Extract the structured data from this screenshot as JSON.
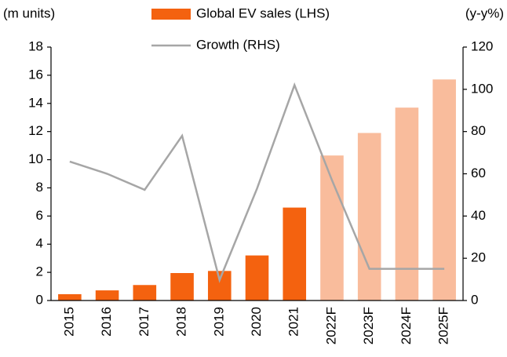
{
  "chart_data": {
    "type": "bar_line",
    "y_label": "(m units)",
    "y2_label": "(y-y%)",
    "categories": [
      "2015",
      "2016",
      "2017",
      "2018",
      "2019",
      "2020",
      "2021",
      "2022F",
      "2023F",
      "2024F",
      "2025F"
    ],
    "series": [
      {
        "name": "Global EV sales (LHS)",
        "type": "bar",
        "color": "#f4620f",
        "colors": [
          "#f4620f",
          "#f4620f",
          "#f4620f",
          "#f4620f",
          "#f4620f",
          "#f4620f",
          "#f4620f",
          "#f9bc9c",
          "#f9bc9c",
          "#f9bc9c",
          "#f9bc9c"
        ],
        "values": [
          0.45,
          0.72,
          1.1,
          1.95,
          2.1,
          3.2,
          6.6,
          10.3,
          11.9,
          13.7,
          15.7
        ]
      },
      {
        "name": "Growth (RHS)",
        "type": "line",
        "color": "#a6a6a6",
        "axis": "y2",
        "values": [
          65.8,
          60,
          52.4,
          78,
          9.7,
          53,
          102,
          57,
          15,
          15,
          15
        ]
      }
    ],
    "ylim": [
      0,
      18
    ],
    "yticks": [
      0,
      2,
      4,
      6,
      8,
      10,
      12,
      14,
      16,
      18
    ],
    "y2lim": [
      0,
      120
    ],
    "y2ticks": [
      0,
      20,
      40,
      60,
      80,
      100,
      120
    ]
  }
}
